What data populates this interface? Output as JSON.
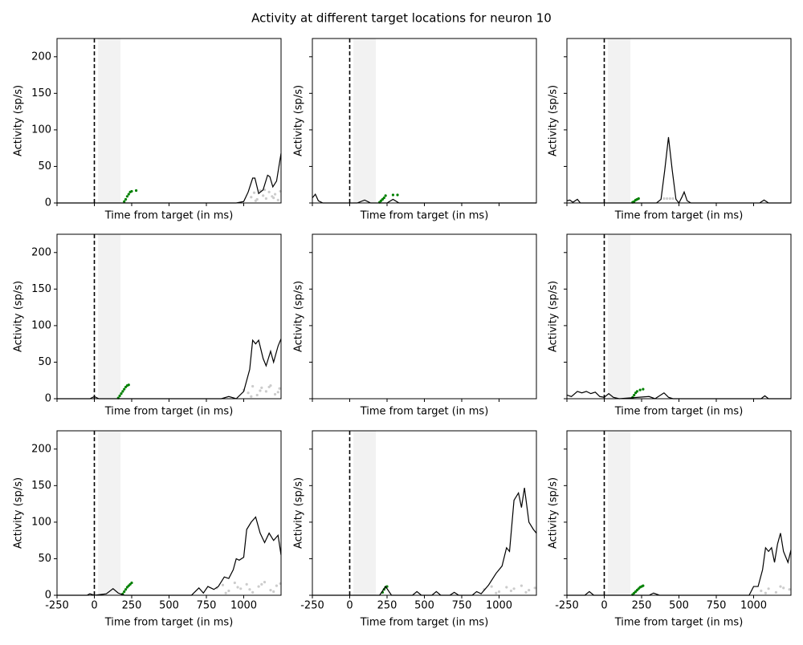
{
  "title": "Activity at different target locations for neuron 10",
  "chart_data": [
    {
      "type": "line",
      "xlabel": "Time from target (in ms)",
      "ylabel": "Activity (sp/s)",
      "xlim": [
        -250,
        1250
      ],
      "ylim": [
        0,
        225
      ],
      "yticks": [
        0,
        50,
        100,
        150,
        200
      ],
      "vline": 0,
      "span": [
        25,
        175
      ],
      "x": [
        -250,
        950,
        1000,
        1030,
        1060,
        1075,
        1100,
        1130,
        1160,
        1175,
        1195,
        1220,
        1250
      ],
      "series": [
        {
          "color": "#000000",
          "values": [
            0,
            0,
            2,
            15,
            34,
            34,
            13,
            18,
            38,
            36,
            22,
            30,
            68
          ]
        }
      ],
      "points": [
        {
          "color": "#008000",
          "x": [
            200,
            210,
            220,
            230,
            240,
            250,
            280
          ],
          "y": [
            2,
            5,
            9,
            12,
            15,
            16,
            17
          ]
        },
        {
          "color": "#cccccc",
          "x": [
            1050,
            1070,
            1090,
            1110,
            1130,
            1150,
            1170,
            1190,
            1210,
            1230,
            1245,
            1080,
            1140,
            1200
          ],
          "y": [
            8,
            14,
            5,
            17,
            10,
            6,
            15,
            9,
            12,
            4,
            16,
            3,
            18,
            7
          ]
        }
      ]
    },
    {
      "type": "line",
      "xlabel": "Time from target (in ms)",
      "ylabel": "Activity (sp/s)",
      "xlim": [
        -250,
        1250
      ],
      "ylim": [
        0,
        225
      ],
      "vline": 0,
      "span": [
        25,
        175
      ],
      "x": [
        -250,
        -230,
        -210,
        -180,
        50,
        100,
        140,
        250,
        290,
        330,
        1250
      ],
      "series": [
        {
          "color": "#000000",
          "values": [
            7,
            12,
            3,
            0,
            0,
            4,
            0,
            0,
            5,
            0,
            0
          ]
        }
      ],
      "points": [
        {
          "color": "#008000",
          "x": [
            200,
            210,
            220,
            230,
            240,
            290,
            320
          ],
          "y": [
            1,
            3,
            5,
            7,
            10,
            11,
            11
          ]
        },
        {
          "color": "#cccccc",
          "x": [],
          "y": []
        }
      ]
    },
    {
      "type": "line",
      "xlabel": "Time from target (in ms)",
      "ylabel": "Activity (sp/s)",
      "xlim": [
        -250,
        1250
      ],
      "ylim": [
        0,
        225
      ],
      "vline": 0,
      "span": [
        25,
        175
      ],
      "x": [
        -250,
        -230,
        -210,
        -180,
        -160,
        350,
        380,
        405,
        430,
        455,
        480,
        500,
        520,
        535,
        555,
        580,
        1040,
        1070,
        1100,
        1250
      ],
      "series": [
        {
          "color": "#000000",
          "values": [
            3,
            4,
            1,
            5,
            0,
            0,
            5,
            45,
            90,
            45,
            5,
            0,
            8,
            15,
            3,
            0,
            0,
            4,
            0,
            0
          ]
        }
      ],
      "points": [
        {
          "color": "#008000",
          "x": [
            190,
            200,
            210,
            220,
            230
          ],
          "y": [
            1,
            2,
            4,
            5,
            6
          ]
        },
        {
          "color": "#cccccc",
          "x": [
            400,
            420,
            440,
            460
          ],
          "y": [
            6,
            6,
            6,
            6
          ]
        }
      ]
    },
    {
      "type": "line",
      "xlabel": "Time from target (in ms)",
      "ylabel": "Activity (sp/s)",
      "xlim": [
        -250,
        1250
      ],
      "ylim": [
        0,
        225
      ],
      "yticks": [
        0,
        50,
        100,
        150,
        200
      ],
      "vline": 0,
      "span": [
        25,
        175
      ],
      "x": [
        -250,
        -30,
        0,
        30,
        850,
        900,
        950,
        1000,
        1040,
        1060,
        1080,
        1100,
        1130,
        1150,
        1180,
        1200,
        1230,
        1250
      ],
      "series": [
        {
          "color": "#000000",
          "values": [
            0,
            0,
            3,
            0,
            0,
            3,
            0,
            10,
            40,
            80,
            75,
            80,
            55,
            45,
            65,
            50,
            72,
            82
          ]
        }
      ],
      "points": [
        {
          "color": "#008000",
          "x": [
            160,
            170,
            180,
            190,
            200,
            210,
            220,
            230
          ],
          "y": [
            1,
            4,
            7,
            10,
            13,
            16,
            18,
            19
          ]
        },
        {
          "color": "#cccccc",
          "x": [
            1000,
            1030,
            1060,
            1090,
            1120,
            1150,
            1180,
            1210,
            1240,
            1050,
            1110,
            1170,
            1230
          ],
          "y": [
            12,
            8,
            17,
            5,
            15,
            10,
            18,
            6,
            14,
            3,
            11,
            16,
            9
          ]
        }
      ]
    },
    {
      "type": "line",
      "xlabel": "Time from target (in ms)",
      "ylabel": "Activity (sp/s)",
      "xlim": [
        -250,
        1250
      ],
      "ylim": [
        0,
        225
      ],
      "x": [],
      "series": [
        {
          "color": "#000000",
          "values": []
        }
      ],
      "points": []
    },
    {
      "type": "line",
      "xlabel": "Time from target (in ms)",
      "ylabel": "Activity (sp/s)",
      "xlim": [
        -250,
        1250
      ],
      "ylim": [
        0,
        225
      ],
      "vline": 0,
      "span": [
        25,
        175
      ],
      "x": [
        -250,
        -220,
        -180,
        -150,
        -120,
        -90,
        -60,
        -30,
        0,
        30,
        60,
        100,
        300,
        340,
        400,
        430,
        460,
        1050,
        1075,
        1100,
        1250
      ],
      "series": [
        {
          "color": "#000000",
          "values": [
            5,
            3,
            10,
            8,
            10,
            7,
            9,
            3,
            2,
            7,
            2,
            0,
            3,
            0,
            8,
            2,
            0,
            0,
            4,
            0,
            0
          ]
        }
      ],
      "points": [
        {
          "color": "#008000",
          "x": [
            190,
            200,
            210,
            220,
            240,
            260
          ],
          "y": [
            2,
            5,
            8,
            10,
            12,
            13
          ]
        },
        {
          "color": "#cccccc",
          "x": [],
          "y": []
        }
      ]
    },
    {
      "type": "line",
      "xlabel": "Time from target (in ms)",
      "ylabel": "Activity (sp/s)",
      "xlim": [
        -250,
        1250
      ],
      "ylim": [
        0,
        225
      ],
      "yticks": [
        0,
        50,
        100,
        150,
        200
      ],
      "xticks": [
        -250,
        0,
        250,
        500,
        750,
        1000
      ],
      "vline": 0,
      "span": [
        25,
        175
      ],
      "x": [
        -250,
        -50,
        -30,
        0,
        80,
        125,
        160,
        200,
        650,
        700,
        730,
        760,
        800,
        830,
        870,
        900,
        930,
        950,
        970,
        1000,
        1020,
        1050,
        1080,
        1110,
        1140,
        1170,
        1200,
        1230,
        1250
      ],
      "series": [
        {
          "color": "#000000",
          "values": [
            0,
            0,
            2,
            0,
            2,
            9,
            3,
            0,
            0,
            10,
            3,
            12,
            8,
            12,
            25,
            23,
            35,
            50,
            48,
            52,
            90,
            100,
            107,
            85,
            72,
            85,
            75,
            82,
            55
          ]
        }
      ],
      "points": [
        {
          "color": "#008000",
          "x": [
            190,
            200,
            210,
            220,
            230,
            240,
            250
          ],
          "y": [
            2,
            5,
            8,
            11,
            13,
            15,
            17
          ]
        },
        {
          "color": "#cccccc",
          "x": [
            820,
            860,
            900,
            940,
            980,
            1020,
            1060,
            1100,
            1140,
            1180,
            1220,
            1245,
            880,
            960,
            1040,
            1120,
            1200
          ],
          "y": [
            10,
            14,
            6,
            17,
            9,
            15,
            4,
            12,
            18,
            7,
            13,
            16,
            3,
            11,
            8,
            15,
            5
          ]
        }
      ]
    },
    {
      "type": "line",
      "xlabel": "Time from target (in ms)",
      "ylabel": "Activity (sp/s)",
      "xlim": [
        -250,
        1250
      ],
      "ylim": [
        0,
        225
      ],
      "xticks": [
        -250,
        0,
        250,
        500,
        750,
        1000
      ],
      "vline": 0,
      "span": [
        25,
        175
      ],
      "x": [
        -250,
        200,
        240,
        280,
        420,
        450,
        480,
        550,
        580,
        610,
        670,
        700,
        730,
        820,
        850,
        880,
        930,
        980,
        1020,
        1050,
        1070,
        1100,
        1130,
        1150,
        1170,
        1200,
        1230,
        1250
      ],
      "series": [
        {
          "color": "#000000",
          "values": [
            0,
            0,
            12,
            0,
            0,
            5,
            0,
            0,
            5,
            0,
            0,
            4,
            0,
            0,
            5,
            2,
            14,
            30,
            40,
            65,
            60,
            130,
            140,
            120,
            147,
            100,
            90,
            85
          ]
        }
      ],
      "points": [
        {
          "color": "#008000",
          "x": [
            220,
            230,
            240,
            250
          ],
          "y": [
            4,
            8,
            11,
            12
          ]
        },
        {
          "color": "#cccccc",
          "x": [
            900,
            950,
            1000,
            1050,
            1100,
            1150,
            1200,
            1240,
            980,
            1080,
            1180
          ],
          "y": [
            8,
            12,
            5,
            11,
            9,
            13,
            7,
            10,
            3,
            6,
            4
          ]
        }
      ]
    },
    {
      "type": "line",
      "xlabel": "Time from target (in ms)",
      "ylabel": "Activity (sp/s)",
      "xlim": [
        -250,
        1250
      ],
      "ylim": [
        0,
        225
      ],
      "xticks": [
        -250,
        0,
        250,
        500,
        750,
        1000
      ],
      "vline": 0,
      "span": [
        25,
        175
      ],
      "x": [
        -250,
        -130,
        -100,
        -70,
        300,
        330,
        370,
        970,
        1000,
        1030,
        1060,
        1080,
        1100,
        1120,
        1140,
        1160,
        1180,
        1200,
        1230,
        1250
      ],
      "series": [
        {
          "color": "#000000",
          "values": [
            0,
            0,
            5,
            0,
            0,
            3,
            0,
            0,
            12,
            12,
            35,
            65,
            60,
            65,
            45,
            70,
            85,
            60,
            45,
            62
          ]
        }
      ],
      "points": [
        {
          "color": "#008000",
          "x": [
            190,
            200,
            210,
            220,
            230,
            240,
            250,
            260
          ],
          "y": [
            1,
            3,
            5,
            7,
            9,
            11,
            12,
            13
          ]
        },
        {
          "color": "#cccccc",
          "x": [
            1050,
            1100,
            1150,
            1200,
            1240,
            1080,
            1180
          ],
          "y": [
            6,
            9,
            4,
            10,
            8,
            3,
            12
          ]
        }
      ]
    }
  ]
}
